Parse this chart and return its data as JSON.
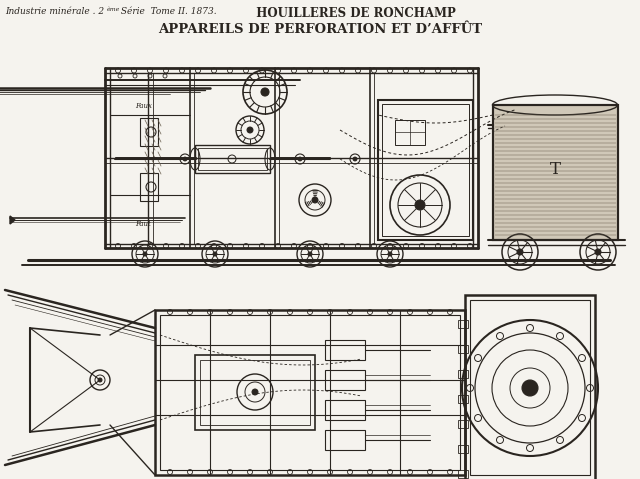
{
  "bg_color": "#f5f3ee",
  "header_line1_left": "Industrie minérale . 2",
  "header_line1_sup": "ème",
  "header_line1_mid": " Série  Tome II. 1873.",
  "header_line1_right": "   HOUILLERES DE RONCHAMP",
  "header_line2": "APPAREILS DE PERFORATION ET D’AFFÛT",
  "fig_width": 6.4,
  "fig_height": 4.79,
  "dpi": 100,
  "ink": "#2a2520",
  "ink_light": "#6a6050",
  "tank_fill": "#d0c8b8"
}
